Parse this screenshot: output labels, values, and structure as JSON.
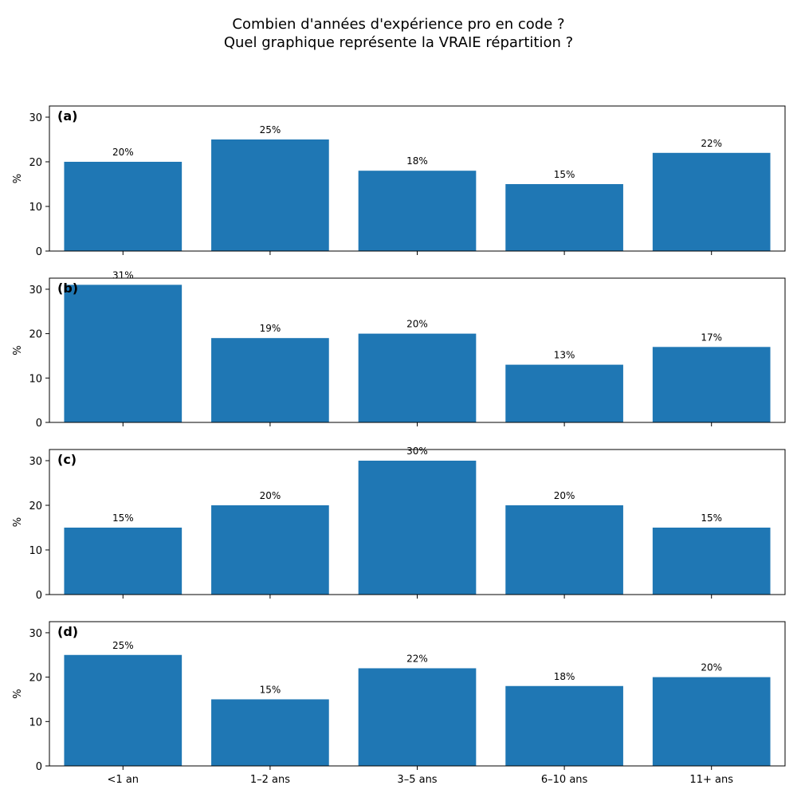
{
  "title_lines": [
    "Combien d'années d'expérience pro en code ?",
    "Quel graphique représente la VRAIE répartition ?"
  ],
  "colors": {
    "bar": "#1f77b4",
    "axes": "#000000"
  },
  "chart_data": [
    {
      "type": "bar",
      "panel_label": "(a)",
      "ylabel": "%",
      "ylim": [
        0,
        32.5
      ],
      "yticks": [
        "0",
        "10",
        "20",
        "30"
      ],
      "categories": [
        "<1 an",
        "1–2 ans",
        "3–5 ans",
        "6–10 ans",
        "11+ ans"
      ],
      "values": [
        20,
        25,
        18,
        15,
        22
      ],
      "labels": [
        "20%",
        "25%",
        "18%",
        "15%",
        "22%"
      ]
    },
    {
      "type": "bar",
      "panel_label": "(b)",
      "ylabel": "%",
      "ylim": [
        0,
        32.5
      ],
      "yticks": [
        "0",
        "10",
        "20",
        "30"
      ],
      "categories": [
        "<1 an",
        "1–2 ans",
        "3–5 ans",
        "6–10 ans",
        "11+ ans"
      ],
      "values": [
        31,
        19,
        20,
        13,
        17
      ],
      "labels": [
        "31%",
        "19%",
        "20%",
        "13%",
        "17%"
      ]
    },
    {
      "type": "bar",
      "panel_label": "(c)",
      "ylabel": "%",
      "ylim": [
        0,
        32.5
      ],
      "yticks": [
        "0",
        "10",
        "20",
        "30"
      ],
      "categories": [
        "<1 an",
        "1–2 ans",
        "3–5 ans",
        "6–10 ans",
        "11+ ans"
      ],
      "values": [
        15,
        20,
        30,
        20,
        15
      ],
      "labels": [
        "15%",
        "20%",
        "30%",
        "20%",
        "15%"
      ]
    },
    {
      "type": "bar",
      "panel_label": "(d)",
      "ylabel": "%",
      "ylim": [
        0,
        32.5
      ],
      "yticks": [
        "0",
        "10",
        "20",
        "30"
      ],
      "categories": [
        "<1 an",
        "1–2 ans",
        "3–5 ans",
        "6–10 ans",
        "11+ ans"
      ],
      "values": [
        25,
        15,
        22,
        18,
        20
      ],
      "labels": [
        "25%",
        "15%",
        "22%",
        "18%",
        "20%"
      ]
    }
  ]
}
